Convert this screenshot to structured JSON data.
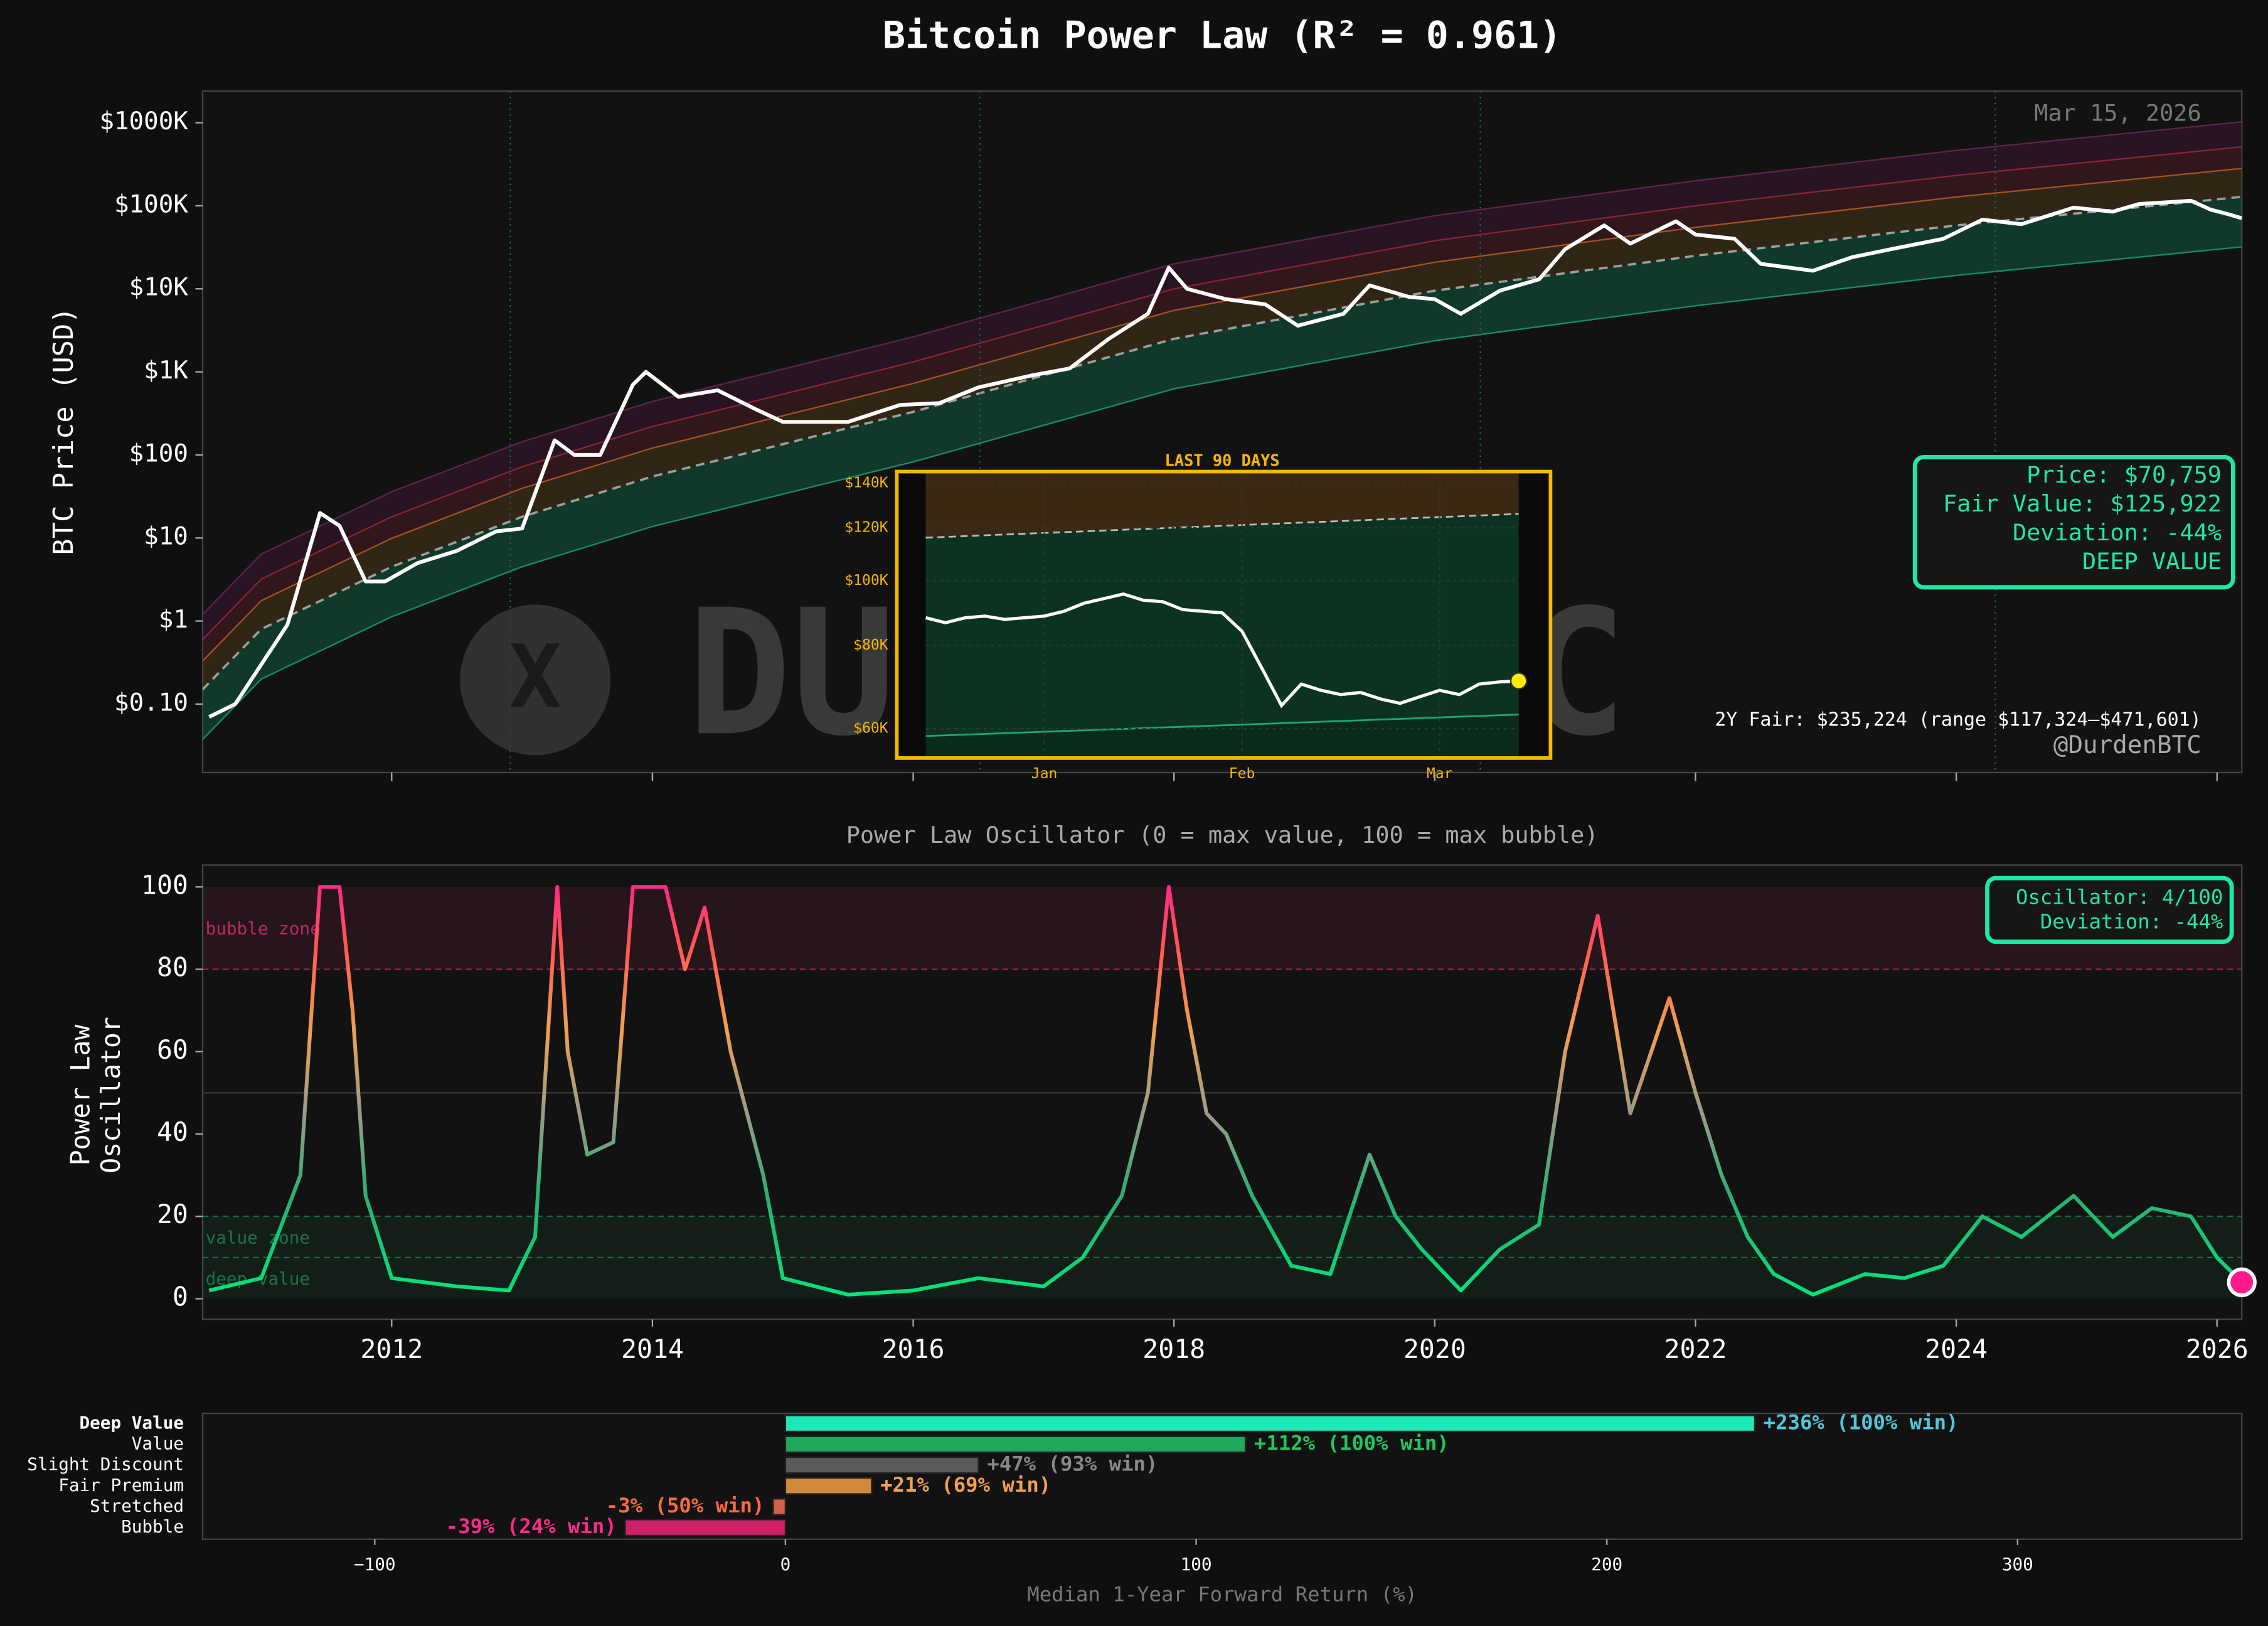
{
  "chart_data": [
    {
      "type": "line",
      "title": "Bitcoin Power Law  (R² = 0.961)",
      "y_label": "BTC Price (USD)",
      "date_label": "Mar 15, 2026",
      "log_scale": true,
      "xlim": [
        2010.55,
        2026.19
      ],
      "ylim": [
        0.015,
        2400000
      ],
      "yticks": [
        {
          "value": 0.1,
          "label": "$0.10"
        },
        {
          "value": 1,
          "label": "$1"
        },
        {
          "value": 10,
          "label": "$10"
        },
        {
          "value": 100,
          "label": "$100"
        },
        {
          "value": 1000,
          "label": "$1K"
        },
        {
          "value": 10000,
          "label": "$10K"
        },
        {
          "value": 100000,
          "label": "$100K"
        },
        {
          "value": 1000000,
          "label": "$1000K"
        }
      ],
      "x": [
        2010.6,
        2010.8,
        2011.0,
        2011.2,
        2011.45,
        2011.6,
        2011.8,
        2011.95,
        2012.2,
        2012.5,
        2012.8,
        2013.0,
        2013.25,
        2013.4,
        2013.6,
        2013.85,
        2013.95,
        2014.2,
        2014.5,
        2014.8,
        2015.0,
        2015.5,
        2015.9,
        2016.2,
        2016.5,
        2016.9,
        2017.2,
        2017.5,
        2017.8,
        2017.96,
        2018.1,
        2018.4,
        2018.7,
        2018.95,
        2019.3,
        2019.5,
        2019.8,
        2020.0,
        2020.2,
        2020.5,
        2020.8,
        2021.0,
        2021.3,
        2021.5,
        2021.85,
        2022.0,
        2022.3,
        2022.5,
        2022.9,
        2023.2,
        2023.5,
        2023.9,
        2024.2,
        2024.5,
        2024.9,
        2025.2,
        2025.4,
        2025.8,
        2025.95,
        2026.1,
        2026.19
      ],
      "series": [
        {
          "color": "#ffffff",
          "values": [
            0.07,
            0.1,
            0.3,
            0.9,
            20,
            14,
            3,
            3,
            5,
            7,
            12,
            13,
            150,
            100,
            100,
            700,
            1000,
            500,
            600,
            350,
            250,
            250,
            400,
            420,
            650,
            900,
            1100,
            2500,
            5000,
            18000,
            10000,
            7500,
            6500,
            3600,
            5000,
            11000,
            8000,
            7500,
            5000,
            9500,
            13000,
            30000,
            58000,
            35000,
            65000,
            45000,
            40000,
            20000,
            16500,
            24000,
            30000,
            40000,
            68000,
            60000,
            95000,
            85000,
            105000,
            115000,
            90000,
            78000,
            70759
          ]
        }
      ],
      "bands": {
        "x": [
          2010.55,
          2011,
          2012,
          2013,
          2014,
          2016,
          2018,
          2020,
          2022,
          2024,
          2026.19
        ],
        "lower": [
          0.0375,
          0.2,
          1.125,
          4.5,
          13.75,
          82.5,
          625,
          2375,
          6250,
          14500,
          32000
        ],
        "fair": [
          0.15,
          0.8,
          4.5,
          18,
          55,
          330,
          2500,
          9500,
          25000,
          58000,
          128000
        ],
        "orange": [
          0.33,
          1.76,
          9.9,
          39.6,
          121,
          726,
          5500,
          20900,
          55000,
          127600,
          281600
        ],
        "red": [
          0.6,
          3.2,
          18,
          72,
          220,
          1320,
          10000,
          38000,
          100000,
          232000,
          512000
        ],
        "top": [
          1.2,
          6.4,
          36,
          144,
          440,
          2640,
          20000,
          76000,
          200000,
          464000,
          1024000
        ],
        "fill_colors": [
          "#0e5a3e",
          "#4a3418",
          "#4a1c22",
          "#3a1432"
        ],
        "line_colors": [
          "#1aa874",
          "#bbbbbb",
          "#c0602a",
          "#a02a3a",
          "#6a2a5a"
        ]
      },
      "halvings": [
        2012.91,
        2016.51,
        2020.35,
        2024.3
      ],
      "info_box": {
        "lines": [
          "Price: $70,759",
          "Fair Value: $125,922",
          "Deviation: -44%",
          "DEEP VALUE"
        ],
        "color": "#1de9a0"
      },
      "forecast_label": "2Y Fair: $235,224  (range $117,324–$471,601)",
      "handle": "@DurdenBTC",
      "watermark": "DURDENBTC"
    },
    {
      "type": "line",
      "title": "LAST 90 DAYS",
      "log_scale": true,
      "color": "#f5b800",
      "ylim": [
        54500,
        145000
      ],
      "yticks": [
        {
          "value": 60000,
          "label": "$60K"
        },
        {
          "value": 80000,
          "label": "$80K"
        },
        {
          "value": 100000,
          "label": "$100K"
        },
        {
          "value": 120000,
          "label": "$120K"
        },
        {
          "value": 140000,
          "label": "$140K"
        }
      ],
      "categories": [
        null,
        null,
        null,
        null,
        null,
        null,
        "Jan",
        null,
        null,
        null,
        null,
        null,
        null,
        null,
        null,
        null,
        "Feb",
        null,
        null,
        null,
        null,
        null,
        null,
        null,
        null,
        null,
        "Mar",
        null,
        null,
        null,
        null
      ],
      "values": [
        88000,
        86500,
        88000,
        88500,
        87500,
        88000,
        88500,
        90000,
        92500,
        94000,
        95500,
        93500,
        93000,
        90500,
        90000,
        89500,
        84000,
        74000,
        65000,
        70000,
        68500,
        67500,
        68000,
        66500,
        65500,
        67000,
        68500,
        67500,
        70000,
        70500,
        70759
      ],
      "fair_value_range": [
        116000,
        125922
      ],
      "lower_band_range": [
        58500,
        63000
      ],
      "end_marker_color": "#ffee00"
    },
    {
      "type": "line",
      "title": "Power Law Oscillator  (0 = max value, 100 = max bubble)",
      "y_label_lines": [
        "Power Law",
        "Oscillator"
      ],
      "xlim": [
        2010.55,
        2026.19
      ],
      "ylim": [
        -5,
        105.3
      ],
      "xticks": [
        2012,
        2014,
        2016,
        2018,
        2020,
        2022,
        2024,
        2026
      ],
      "yticks": [
        0,
        20,
        40,
        60,
        80,
        100
      ],
      "x": [
        2010.6,
        2011.0,
        2011.3,
        2011.45,
        2011.6,
        2011.7,
        2011.8,
        2012.0,
        2012.5,
        2012.9,
        2013.1,
        2013.27,
        2013.35,
        2013.5,
        2013.7,
        2013.85,
        2014.1,
        2014.25,
        2014.4,
        2014.6,
        2014.85,
        2015.0,
        2015.5,
        2016.0,
        2016.5,
        2017.0,
        2017.3,
        2017.6,
        2017.8,
        2017.96,
        2018.1,
        2018.25,
        2018.4,
        2018.6,
        2018.9,
        2019.2,
        2019.5,
        2019.7,
        2019.9,
        2020.2,
        2020.5,
        2020.8,
        2021.0,
        2021.25,
        2021.5,
        2021.8,
        2022.0,
        2022.2,
        2022.4,
        2022.6,
        2022.9,
        2023.3,
        2023.6,
        2023.9,
        2024.2,
        2024.5,
        2024.9,
        2025.2,
        2025.5,
        2025.8,
        2026.0,
        2026.19
      ],
      "values": [
        2,
        5,
        30,
        100,
        100,
        70,
        25,
        5,
        3,
        2,
        15,
        100,
        60,
        35,
        38,
        100,
        100,
        80,
        95,
        60,
        30,
        5,
        1,
        2,
        5,
        3,
        10,
        25,
        50,
        100,
        70,
        45,
        40,
        25,
        8,
        6,
        35,
        20,
        12,
        2,
        12,
        18,
        60,
        93,
        45,
        73,
        50,
        30,
        15,
        6,
        1,
        6,
        5,
        8,
        20,
        15,
        25,
        15,
        22,
        20,
        10,
        4
      ],
      "gradient": [
        {
          "value": 0,
          "color": "#00e67a"
        },
        {
          "value": 25,
          "color": "#2ab070"
        },
        {
          "value": 45,
          "color": "#9a9a8a"
        },
        {
          "value": 65,
          "color": "#f0a050"
        },
        {
          "value": 85,
          "color": "#ff5a50"
        },
        {
          "value": 100,
          "color": "#ff2a8a"
        }
      ],
      "zones": [
        {
          "label": "bubble zone",
          "range": [
            80,
            100
          ],
          "color": "#e0307a"
        },
        {
          "label": "value zone",
          "range": [
            10,
            20
          ],
          "color": "#1a8a55"
        },
        {
          "label": "deep value",
          "range": [
            0,
            10
          ],
          "color": "#1a8a55"
        }
      ],
      "reference_lines": [
        {
          "value": 80,
          "color": "#8a2a50",
          "dashed": true
        },
        {
          "value": 50,
          "color": "#3a3a3a",
          "dashed": false
        },
        {
          "value": 20,
          "color": "#1f6a45",
          "dashed": true
        },
        {
          "value": 10,
          "color": "#1f6a45",
          "dashed": true
        }
      ],
      "info_box": {
        "lines": [
          "Oscillator: 4/100",
          "Deviation: -44%"
        ],
        "color": "#1de9a0"
      },
      "end_marker_color": "#ff1a8c"
    },
    {
      "type": "hbar",
      "categories": [
        "Deep Value",
        "Value",
        "Slight Discount",
        "Fair Premium",
        "Stretched",
        "Bubble"
      ],
      "values": [
        236,
        112,
        47,
        21,
        -3,
        -39
      ],
      "value_labels": [
        "+236%  (100% win)",
        "+112%  (100% win)",
        "+47%  (93% win)",
        "+21%  (69% win)",
        "-3%  (50% win)",
        "-39%  (24% win)"
      ],
      "colors": [
        "#1de9b6",
        "#1fa85a",
        "#5a5a5a",
        "#d08a3a",
        "#d0604a",
        "#d0206a"
      ],
      "label_colors": [
        "#4fc8d8",
        "#22c55e",
        "#888888",
        "#f0a050",
        "#ff6a40",
        "#ff2a8a"
      ],
      "xlim": [
        -141.9,
        354.6
      ],
      "xticks": [
        {
          "value": -100,
          "label": "−100"
        },
        0,
        100,
        200,
        300
      ],
      "x_label": "Median 1-Year Forward Return (%)"
    }
  ]
}
